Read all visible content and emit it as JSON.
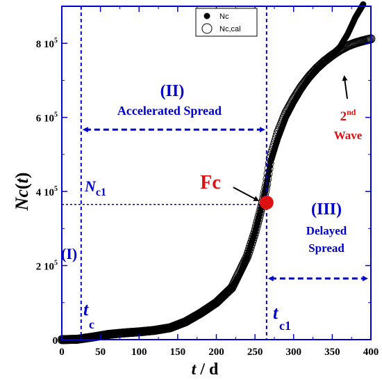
{
  "chart_data": {
    "type": "scatter",
    "xlabel": {
      "main": "t",
      "unit": "d"
    },
    "ylabel": {
      "main": "Nc",
      "arg": "t"
    },
    "xlim": [
      0,
      400
    ],
    "ylim": [
      0,
      900000
    ],
    "x_ticks": [
      0,
      50,
      100,
      150,
      200,
      250,
      300,
      350,
      400
    ],
    "x_tick_labels": [
      "0",
      "50",
      "100",
      "150",
      "200",
      "250",
      "300",
      "350",
      "400"
    ],
    "y_ticks": [
      0,
      200000,
      400000,
      600000,
      800000
    ],
    "y_tick_labels": [
      {
        "mant": "0",
        "exp": ""
      },
      {
        "mant": "2 10",
        "exp": "5"
      },
      {
        "mant": "4 10",
        "exp": "5"
      },
      {
        "mant": "6 10",
        "exp": "5"
      },
      {
        "mant": "8 10",
        "exp": "5"
      }
    ],
    "legend": {
      "position": "top-center",
      "entries": [
        "Nc",
        "Nc,cal"
      ]
    },
    "series": [
      {
        "name": "Nc",
        "marker": "filled-circle",
        "color": "#000000",
        "x": [
          0,
          10,
          20,
          25,
          30,
          40,
          50,
          60,
          80,
          100,
          120,
          140,
          150,
          160,
          180,
          200,
          220,
          230,
          240,
          250,
          255,
          260,
          265,
          270,
          280,
          290,
          300,
          310,
          320,
          330,
          340,
          350,
          360,
          370,
          380,
          390
        ],
        "y": [
          0,
          200,
          1000,
          2000,
          4000,
          7000,
          11000,
          14000,
          18000,
          21000,
          25000,
          32000,
          38000,
          48000,
          72000,
          100000,
          140000,
          175000,
          225000,
          290000,
          330000,
          370000,
          420000,
          480000,
          545000,
          600000,
          640000,
          675000,
          705000,
          730000,
          750000,
          770000,
          790000,
          825000,
          870000,
          905000
        ]
      },
      {
        "name": "Nc,cal",
        "marker": "open-circle",
        "color": "#000000",
        "x": [
          0,
          20,
          40,
          60,
          80,
          100,
          120,
          140,
          160,
          180,
          200,
          220,
          240,
          250,
          260,
          265,
          270,
          280,
          290,
          300,
          310,
          320,
          330,
          340,
          350,
          360,
          370,
          380,
          390,
          400
        ],
        "y": [
          0,
          1000,
          7000,
          14000,
          18000,
          21000,
          25000,
          32000,
          48000,
          72000,
          100000,
          140000,
          225000,
          290000,
          370000,
          420000,
          490000,
          560000,
          612000,
          650000,
          683000,
          710000,
          733000,
          752000,
          768000,
          782000,
          793000,
          801000,
          807000,
          812000
        ]
      }
    ],
    "reference_lines": {
      "tc": 25,
      "tc1": 265,
      "Nc1": 365000
    },
    "arrow_levels": {
      "region_II": 567000,
      "region_III": 165000
    },
    "fc_point": {
      "x": 265,
      "y": 370000
    },
    "annotations": {
      "region_I": "(I)",
      "region_II": "(II)",
      "region_II_label": "Accelerated Spread",
      "region_III": "(III)",
      "region_III_label_1": "Delayed",
      "region_III_label_2": "Spread",
      "nc1_main": "N",
      "nc1_sub": "c1",
      "tc_main": "t",
      "tc_sub": "c",
      "tc1_main": "t",
      "tc1_sub": "c1",
      "fc": "Fc",
      "second_wave_num": "2",
      "second_wave_sup": "nd",
      "second_wave_label": "Wave"
    },
    "colors": {
      "accent_blue": "#0000cc",
      "accent_red": "#dd1111",
      "data": "#000000"
    }
  }
}
